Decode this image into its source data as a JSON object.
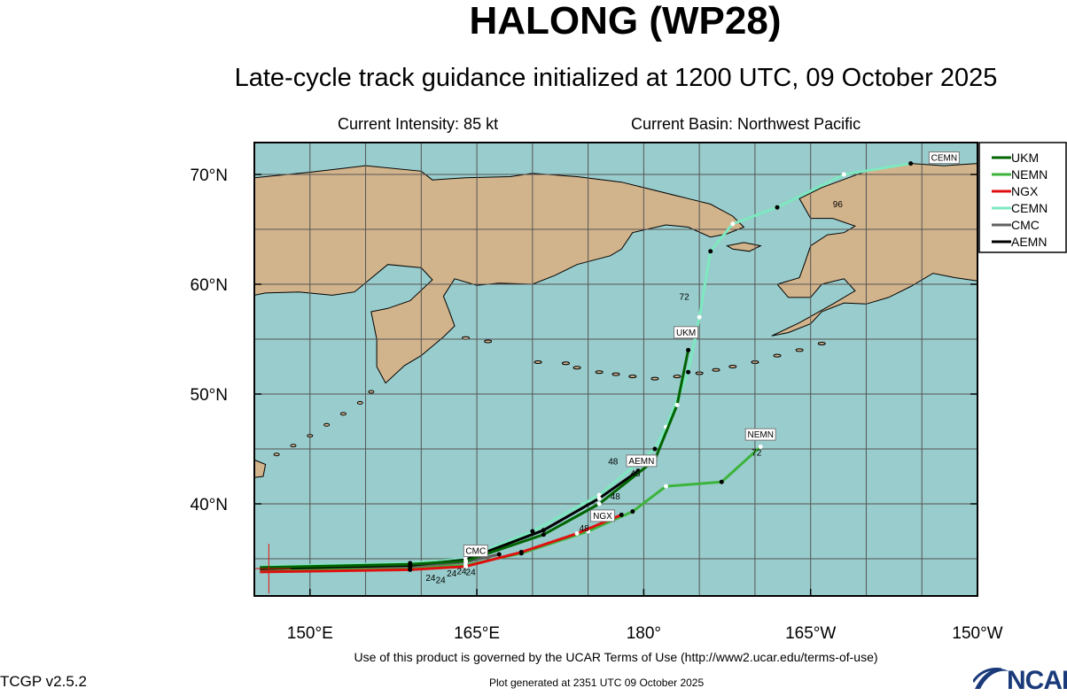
{
  "title": "HALONG (WP28)",
  "subtitle": "Late-cycle track guidance initialized at 1200 UTC, 09 October 2025",
  "current_intensity": "Current Intensity: 85 kt",
  "current_basin": "Current Basin: Northwest Pacific",
  "y_ticks": [
    "70°N",
    "60°N",
    "50°N",
    "40°N"
  ],
  "x_ticks": [
    "150°E",
    "165°E",
    "180°",
    "165°W",
    "150°W"
  ],
  "legend": [
    {
      "name": "UKM",
      "color": "#006400"
    },
    {
      "name": "NEMN",
      "color": "#3cb43c"
    },
    {
      "name": "NGX",
      "color": "#e01010"
    },
    {
      "name": "CEMN",
      "color": "#7ee8c0"
    },
    {
      "name": "CMC",
      "color": "#606060"
    },
    {
      "name": "AEMN",
      "color": "#000000"
    }
  ],
  "track_labels": [
    {
      "text": "CEMN",
      "track": "CEMN"
    },
    {
      "text": "UKM",
      "track": "UKM"
    },
    {
      "text": "NEMN",
      "track": "NEMN"
    },
    {
      "text": "AEMN",
      "track": "AEMN"
    },
    {
      "text": "NGX",
      "track": "NGX"
    },
    {
      "text": "CMC",
      "track": "CMC"
    }
  ],
  "hour_labels": [
    "96",
    "72",
    "72",
    "48",
    "48",
    "48",
    "48",
    "24",
    "24",
    "24",
    "24",
    "24"
  ],
  "terms": "Use of this product is governed by the UCAR Terms of Use (http://www2.ucar.edu/terms-of-use)",
  "version": "TCGP v2.5.2",
  "generated": "Plot generated at 2351 UTC   09 October 2025",
  "logo_text": "NCAR",
  "colors": {
    "ocean": "#99cccc",
    "land": "#d2b48c",
    "grid": "#555555"
  },
  "map_extent": {
    "lon_range": [
      "145°E",
      "150°W"
    ],
    "lat_range": [
      "32°N",
      "73°N"
    ]
  },
  "tracks": {
    "UKM": [
      [
        145.5,
        34.2
      ],
      [
        159,
        34.5
      ],
      [
        164,
        34.8
      ],
      [
        171,
        37.2
      ],
      [
        176,
        40
      ],
      [
        181,
        44
      ],
      [
        183,
        49
      ],
      [
        184,
        54
      ]
    ],
    "NEMN": [
      [
        145.5,
        34.0
      ],
      [
        159,
        34.2
      ],
      [
        164,
        34.4
      ],
      [
        169,
        35.5
      ],
      [
        175,
        37.5
      ],
      [
        179,
        39.3
      ],
      [
        182,
        41.6
      ],
      [
        187,
        42
      ],
      [
        190.5,
        45.2
      ]
    ],
    "NGX": [
      [
        145.5,
        33.8
      ],
      [
        159,
        34.0
      ],
      [
        164,
        34.3
      ],
      [
        169,
        35.6
      ],
      [
        174,
        37.3
      ],
      [
        178,
        39
      ]
    ],
    "CEMN": [
      [
        145.5,
        34.3
      ],
      [
        159,
        34.6
      ],
      [
        164,
        35
      ],
      [
        170,
        37.5
      ],
      [
        176,
        40.8
      ],
      [
        181,
        45
      ],
      [
        182,
        47
      ],
      [
        184,
        52
      ],
      [
        185,
        57
      ],
      [
        186,
        63
      ],
      [
        188,
        65.5
      ],
      [
        192,
        67
      ],
      [
        198,
        70
      ],
      [
        204,
        71
      ]
    ],
    "CMC": [
      [
        145.5,
        34.2
      ],
      [
        159,
        34.3
      ],
      [
        164,
        34.7
      ],
      [
        167,
        35.4
      ]
    ],
    "AEMN": [
      [
        145.5,
        34.1
      ],
      [
        159,
        34.4
      ],
      [
        164,
        34.9
      ],
      [
        171,
        37.6
      ],
      [
        176,
        40.5
      ],
      [
        179.5,
        43
      ]
    ]
  }
}
